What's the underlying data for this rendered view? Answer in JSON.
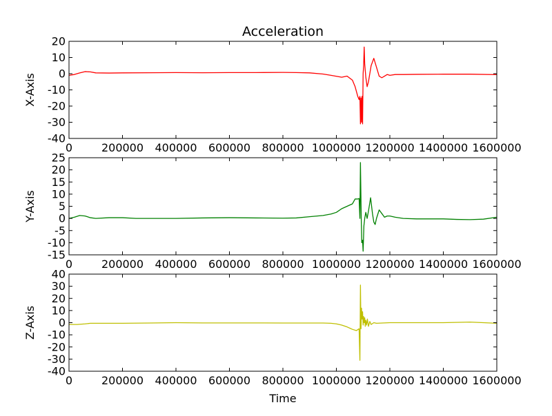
{
  "title": "Acceleration",
  "xlabel": "Time",
  "chart_data": [
    {
      "type": "line",
      "title": "Acceleration",
      "ylabel": "X-Axis",
      "xlim": [
        0,
        1600000
      ],
      "ylim": [
        -40,
        20
      ],
      "xticks": [
        0,
        200000,
        400000,
        600000,
        800000,
        1000000,
        1200000,
        1400000,
        1600000
      ],
      "yticks": [
        20,
        10,
        0,
        -10,
        -20,
        -30,
        -40
      ],
      "grid": false,
      "series": [
        {
          "color": "#ff0000",
          "x": [
            0,
            20000,
            40000,
            60000,
            80000,
            100000,
            150000,
            200000,
            300000,
            400000,
            500000,
            600000,
            700000,
            800000,
            850000,
            900000,
            950000,
            980000,
            1000000,
            1020000,
            1040000,
            1060000,
            1070000,
            1080000,
            1085000,
            1088000,
            1090000,
            1092000,
            1094000,
            1096000,
            1098000,
            1100000,
            1102000,
            1104000,
            1106000,
            1110000,
            1115000,
            1120000,
            1130000,
            1140000,
            1150000,
            1160000,
            1170000,
            1180000,
            1190000,
            1200000,
            1220000,
            1250000,
            1300000,
            1400000,
            1500000,
            1600000
          ],
          "y": [
            -1,
            -0.5,
            0.5,
            1.3,
            1.1,
            0.5,
            0.4,
            0.5,
            0.6,
            0.7,
            0.6,
            0.7,
            0.7,
            0.8,
            0.7,
            0.5,
            -0.2,
            -1,
            -1.6,
            -2.2,
            -1.5,
            -4,
            -8,
            -14,
            -16,
            -14,
            -31,
            -15,
            -30,
            -14,
            -31,
            0,
            5,
            16.5,
            6,
            -2,
            -8,
            -5,
            5,
            9.5,
            4,
            -1.5,
            -2.5,
            -1.5,
            -0.5,
            -1,
            -0.5,
            -0.5,
            -0.4,
            -0.3,
            -0.3,
            -0.6
          ]
        }
      ]
    },
    {
      "type": "line",
      "ylabel": "Y-Axis",
      "xlim": [
        0,
        1600000
      ],
      "ylim": [
        -15,
        25
      ],
      "xticks": [
        0,
        200000,
        400000,
        600000,
        800000,
        1000000,
        1200000,
        1400000,
        1600000
      ],
      "yticks": [
        25,
        20,
        15,
        10,
        5,
        0,
        -5,
        -10,
        -15
      ],
      "grid": false,
      "series": [
        {
          "color": "#008000",
          "x": [
            0,
            20000,
            40000,
            60000,
            80000,
            100000,
            150000,
            200000,
            250000,
            300000,
            400000,
            500000,
            600000,
            700000,
            800000,
            850000,
            900000,
            950000,
            980000,
            1000000,
            1020000,
            1040000,
            1060000,
            1070000,
            1080000,
            1085000,
            1088000,
            1090000,
            1093000,
            1095000,
            1098000,
            1100000,
            1103000,
            1106000,
            1110000,
            1115000,
            1120000,
            1128000,
            1135000,
            1140000,
            1145000,
            1150000,
            1160000,
            1170000,
            1180000,
            1190000,
            1200000,
            1220000,
            1250000,
            1300000,
            1400000,
            1450000,
            1500000,
            1550000,
            1600000
          ],
          "y": [
            0,
            0.5,
            1.2,
            1,
            0.3,
            0,
            0.3,
            0.3,
            0,
            0,
            0,
            0.2,
            0.3,
            0.2,
            0.1,
            0.2,
            0.7,
            1.2,
            1.8,
            2.5,
            4,
            5,
            6,
            8,
            8,
            8.2,
            0,
            23,
            0,
            -10,
            -9,
            -13.5,
            -3,
            0,
            2.5,
            0,
            3,
            8.5,
            2,
            -1.5,
            -2.5,
            0,
            3.5,
            2,
            0.5,
            1,
            1,
            0.5,
            0,
            -0.2,
            -0.2,
            -0.4,
            -0.5,
            -0.3,
            0.5
          ]
        }
      ]
    },
    {
      "type": "line",
      "ylabel": "Z-Axis",
      "xlim": [
        0,
        1600000
      ],
      "ylim": [
        -40,
        40
      ],
      "xticks": [
        0,
        200000,
        400000,
        600000,
        800000,
        1000000,
        1200000,
        1400000,
        1600000
      ],
      "yticks": [
        40,
        30,
        20,
        10,
        0,
        -10,
        -20,
        -30,
        -40
      ],
      "grid": false,
      "series": [
        {
          "color": "#bfbf00",
          "x": [
            0,
            30000,
            60000,
            80000,
            100000,
            200000,
            300000,
            400000,
            500000,
            600000,
            700000,
            800000,
            900000,
            950000,
            980000,
            1000000,
            1020000,
            1040000,
            1060000,
            1075000,
            1085000,
            1088000,
            1090000,
            1092000,
            1094000,
            1096000,
            1098000,
            1100000,
            1102000,
            1104000,
            1106000,
            1108000,
            1110000,
            1113000,
            1116000,
            1120000,
            1125000,
            1130000,
            1140000,
            1150000,
            1200000,
            1300000,
            1400000,
            1500000,
            1600000
          ],
          "y": [
            -1.5,
            -1.5,
            -1,
            -0.5,
            -0.5,
            -0.5,
            -0.3,
            0,
            -0.2,
            -0.2,
            -0.2,
            -0.3,
            -0.3,
            -0.3,
            -0.5,
            -1,
            -2,
            -3.5,
            -5.5,
            -6.5,
            -5,
            -31,
            31,
            -5,
            12,
            3,
            9,
            -2,
            5,
            0,
            4,
            -3,
            2,
            -2,
            3,
            -3,
            1,
            -1.5,
            0,
            -0.5,
            0,
            0,
            0,
            0.5,
            -0.5
          ]
        }
      ]
    }
  ]
}
